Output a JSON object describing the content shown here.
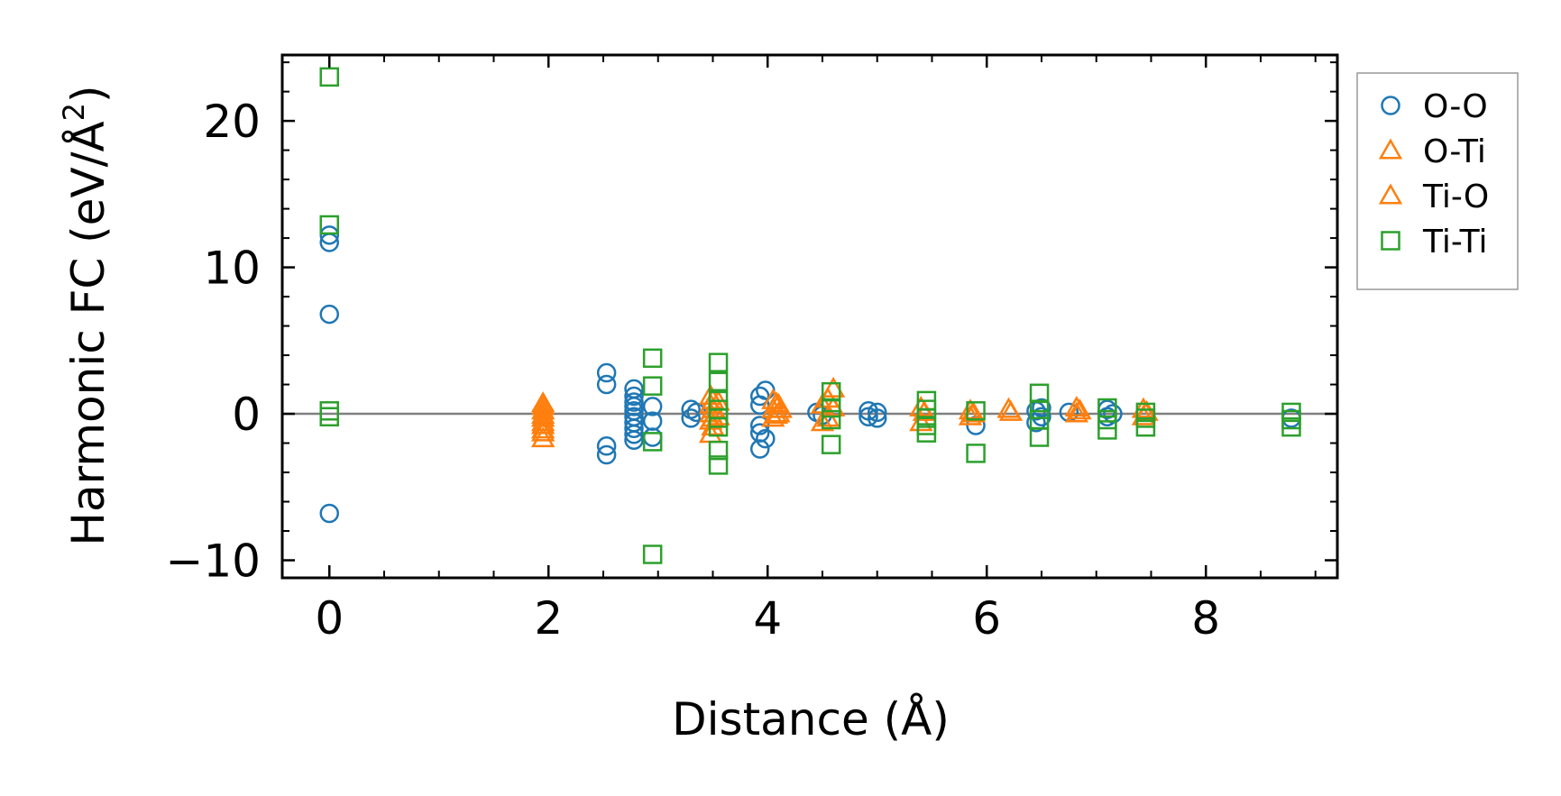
{
  "chart_data": {
    "type": "scatter",
    "title": "",
    "xlabel": "Distance (Å)",
    "ylabel_main": "Harmonic FC (eV/Å",
    "ylabel_sup": "2",
    "ylabel_close": ")",
    "xlim": [
      -0.43,
      9.2
    ],
    "ylim": [
      -11.2,
      24.5
    ],
    "x_ticks": [
      0,
      2,
      4,
      6,
      8
    ],
    "x_tick_labels": [
      "0",
      "2",
      "4",
      "6",
      "8"
    ],
    "x_minor_step": 0.5,
    "y_ticks": [
      -10,
      0,
      10,
      20
    ],
    "y_tick_labels": [
      "−10",
      "0",
      "10",
      "20"
    ],
    "y_minor_step": 2,
    "zero_line": 0,
    "legend_position": "outside-right-top",
    "series": [
      {
        "name": "O-O",
        "marker": "circle",
        "color": "#1f77b4",
        "points": [
          [
            0,
            12.2
          ],
          [
            0,
            11.7
          ],
          [
            0,
            6.8
          ],
          [
            0,
            -6.8
          ],
          [
            2.53,
            2.8
          ],
          [
            2.53,
            2.0
          ],
          [
            2.53,
            -2.2
          ],
          [
            2.53,
            -2.8
          ],
          [
            2.78,
            1.7
          ],
          [
            2.78,
            1.2
          ],
          [
            2.78,
            0.8
          ],
          [
            2.78,
            0.5
          ],
          [
            2.78,
            0.2
          ],
          [
            2.78,
            -0.2
          ],
          [
            2.78,
            -0.6
          ],
          [
            2.78,
            -1.0
          ],
          [
            2.78,
            -1.4
          ],
          [
            2.78,
            -1.8
          ],
          [
            2.95,
            0.5
          ],
          [
            2.95,
            -0.5
          ],
          [
            2.95,
            -1.6
          ],
          [
            3.3,
            0.3
          ],
          [
            3.3,
            -0.3
          ],
          [
            3.35,
            0.1
          ],
          [
            3.93,
            1.2
          ],
          [
            3.93,
            0.6
          ],
          [
            3.93,
            -0.8
          ],
          [
            3.93,
            -1.3
          ],
          [
            3.93,
            -2.4
          ],
          [
            3.98,
            1.6
          ],
          [
            3.98,
            -1.7
          ],
          [
            4.45,
            0.1
          ],
          [
            4.5,
            -0.1
          ],
          [
            4.92,
            0.2
          ],
          [
            4.92,
            -0.2
          ],
          [
            5.0,
            0.1
          ],
          [
            5.0,
            -0.3
          ],
          [
            5.9,
            -0.8
          ],
          [
            6.45,
            0.2
          ],
          [
            6.45,
            -0.6
          ],
          [
            6.5,
            0.4
          ],
          [
            6.5,
            -0.2
          ],
          [
            6.75,
            0.1
          ],
          [
            7.1,
            0.3
          ],
          [
            7.1,
            -0.2
          ],
          [
            7.15,
            0.0
          ],
          [
            8.78,
            -0.3
          ]
        ]
      },
      {
        "name": "O-Ti",
        "marker": "triangle",
        "color": "#ff7f0e",
        "points": [
          [
            1.95,
            0.7
          ],
          [
            1.95,
            0.2
          ],
          [
            1.95,
            -0.3
          ],
          [
            1.95,
            -0.8
          ],
          [
            1.95,
            -1.3
          ],
          [
            1.95,
            -1.7
          ],
          [
            3.48,
            1.2
          ],
          [
            3.48,
            0.6
          ],
          [
            3.48,
            0.0
          ],
          [
            3.48,
            -0.5
          ],
          [
            3.48,
            -1.4
          ],
          [
            3.55,
            0.8
          ],
          [
            3.55,
            -0.2
          ],
          [
            4.05,
            0.9
          ],
          [
            4.05,
            0.3
          ],
          [
            4.05,
            -0.3
          ],
          [
            4.1,
            0.6
          ],
          [
            4.1,
            0.0
          ],
          [
            4.5,
            0.6
          ],
          [
            4.5,
            -0.6
          ],
          [
            4.6,
            1.7
          ],
          [
            4.6,
            0.4
          ],
          [
            5.4,
            0.4
          ],
          [
            5.4,
            -0.6
          ],
          [
            5.85,
            0.2
          ],
          [
            5.85,
            -0.2
          ],
          [
            6.2,
            0.3
          ],
          [
            6.82,
            0.4
          ],
          [
            6.82,
            0.0
          ],
          [
            7.43,
            0.3
          ],
          [
            7.43,
            -0.2
          ]
        ]
      },
      {
        "name": "Ti-O",
        "marker": "triangle",
        "color": "#ff7f0e",
        "points": [
          [
            1.95,
            0.5
          ],
          [
            1.95,
            -0.1
          ],
          [
            1.95,
            -0.6
          ],
          [
            1.95,
            -1.1
          ],
          [
            3.5,
            0.9
          ],
          [
            3.5,
            0.3
          ],
          [
            3.5,
            -0.3
          ],
          [
            3.5,
            -0.9
          ],
          [
            4.08,
            0.7
          ],
          [
            4.08,
            -0.1
          ],
          [
            4.12,
            0.3
          ],
          [
            4.55,
            1.0
          ],
          [
            4.55,
            -0.3
          ],
          [
            5.43,
            0.1
          ],
          [
            5.88,
            0.0
          ],
          [
            6.22,
            0.1
          ],
          [
            6.85,
            0.2
          ],
          [
            7.46,
            0.1
          ]
        ]
      },
      {
        "name": "Ti-Ti",
        "marker": "square",
        "color": "#2ca02c",
        "points": [
          [
            0,
            23.0
          ],
          [
            0,
            12.9
          ],
          [
            0,
            0.2
          ],
          [
            0,
            -0.2
          ],
          [
            2.95,
            3.8
          ],
          [
            2.95,
            1.9
          ],
          [
            2.95,
            -1.9
          ],
          [
            2.95,
            -9.6
          ],
          [
            3.55,
            3.5
          ],
          [
            3.55,
            2.2
          ],
          [
            3.55,
            0.9
          ],
          [
            3.55,
            0.3
          ],
          [
            3.55,
            -0.3
          ],
          [
            3.55,
            -0.9
          ],
          [
            3.55,
            -2.5
          ],
          [
            3.55,
            -3.5
          ],
          [
            4.58,
            1.5
          ],
          [
            4.58,
            0.4
          ],
          [
            4.58,
            -0.4
          ],
          [
            4.58,
            -2.1
          ],
          [
            5.45,
            0.9
          ],
          [
            5.45,
            0.3
          ],
          [
            5.45,
            -0.3
          ],
          [
            5.45,
            -0.8
          ],
          [
            5.45,
            -1.3
          ],
          [
            5.9,
            0.2
          ],
          [
            5.9,
            -2.7
          ],
          [
            6.48,
            1.4
          ],
          [
            6.48,
            0.3
          ],
          [
            6.48,
            -0.4
          ],
          [
            6.48,
            -1.6
          ],
          [
            7.1,
            0.4
          ],
          [
            7.1,
            -0.4
          ],
          [
            7.1,
            -1.1
          ],
          [
            7.45,
            0.1
          ],
          [
            7.45,
            -0.3
          ],
          [
            7.45,
            -0.9
          ],
          [
            8.78,
            0.1
          ],
          [
            8.78,
            -0.4
          ],
          [
            8.78,
            -0.9
          ]
        ]
      }
    ]
  }
}
